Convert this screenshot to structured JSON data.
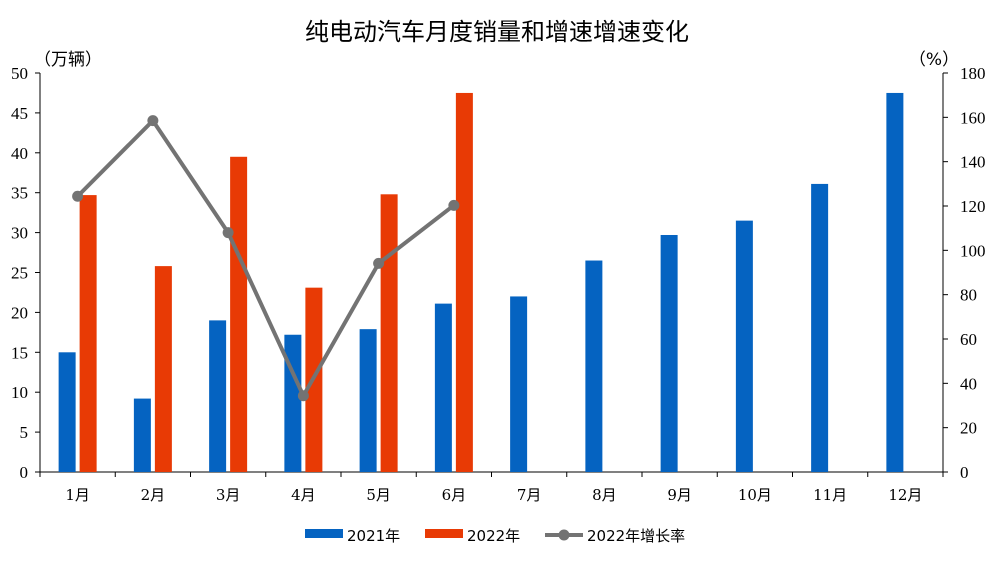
{
  "chart_data": {
    "type": "bar",
    "title": "纯电动汽车月度销量和增速增速变化",
    "left_unit": "（万辆）",
    "right_unit": "（%）",
    "categories": [
      "1月",
      "2月",
      "3月",
      "4月",
      "5月",
      "6月",
      "7月",
      "8月",
      "9月",
      "10月",
      "11月",
      "12月"
    ],
    "left_axis": {
      "ylim": [
        0,
        50
      ],
      "ticks": [
        "0",
        "5",
        "10",
        "15",
        "20",
        "25",
        "30",
        "35",
        "40",
        "45",
        "50"
      ]
    },
    "right_axis": {
      "ylim": [
        0,
        180
      ],
      "ticks": [
        "0",
        "20",
        "40",
        "60",
        "80",
        "100",
        "120",
        "140",
        "160",
        "180"
      ]
    },
    "series": [
      {
        "name": "2021年",
        "kind": "bar",
        "axis": "left",
        "color": "#0563C1",
        "values": [
          15.0,
          9.2,
          19.0,
          17.2,
          17.9,
          21.1,
          22.0,
          26.5,
          29.7,
          31.5,
          36.1,
          47.5
        ]
      },
      {
        "name": "2022年",
        "kind": "bar",
        "axis": "left",
        "color": "#E83A05",
        "values": [
          34.7,
          25.8,
          39.5,
          23.1,
          34.8,
          47.5,
          null,
          null,
          null,
          null,
          null,
          null
        ]
      },
      {
        "name": "2022年增长率",
        "kind": "line",
        "axis": "right",
        "color": "#737373",
        "values": [
          124.4,
          158.5,
          108.0,
          34.4,
          94.1,
          120.3,
          null,
          null,
          null,
          null,
          null,
          null
        ]
      }
    ],
    "legend_position": "bottom",
    "grid": false
  }
}
